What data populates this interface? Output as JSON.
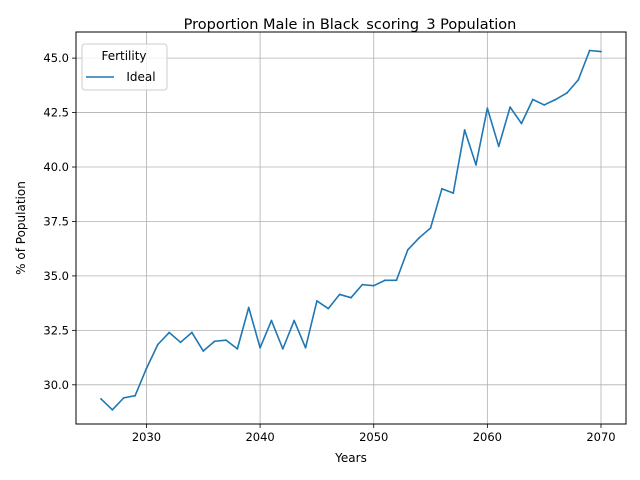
{
  "chart_data": {
    "type": "line",
    "title": "Proportion Male in Black_scoring_3 Population",
    "xlabel": "Years",
    "ylabel": "% of Population",
    "xlim": [
      2023.8,
      2072.2
    ],
    "ylim": [
      28.2,
      46.2
    ],
    "x_ticks": [
      2030,
      2040,
      2050,
      2060,
      2070
    ],
    "y_ticks": [
      30.0,
      32.5,
      35.0,
      37.5,
      40.0,
      42.5,
      45.0
    ],
    "x_tick_labels": [
      "2030",
      "2040",
      "2050",
      "2060",
      "2070"
    ],
    "y_tick_labels": [
      "30.0",
      "32.5",
      "35.0",
      "37.5",
      "40.0",
      "42.5",
      "45.0"
    ],
    "grid": true,
    "legend": {
      "title": "Fertility",
      "placement": "top-left"
    },
    "series": [
      {
        "name": "Ideal",
        "color": "#1f77b4",
        "x": [
          2026,
          2027,
          2028,
          2029,
          2030,
          2031,
          2032,
          2033,
          2034,
          2035,
          2036,
          2037,
          2038,
          2039,
          2040,
          2041,
          2042,
          2043,
          2044,
          2045,
          2046,
          2047,
          2048,
          2049,
          2050,
          2051,
          2052,
          2053,
          2054,
          2055,
          2056,
          2057,
          2058,
          2059,
          2060,
          2061,
          2062,
          2063,
          2064,
          2065,
          2066,
          2067,
          2068,
          2069,
          2070
        ],
        "y": [
          29.35,
          28.85,
          29.4,
          29.5,
          30.75,
          31.85,
          32.4,
          31.95,
          32.4,
          31.55,
          32.0,
          32.05,
          31.65,
          33.55,
          31.7,
          32.95,
          31.65,
          32.95,
          31.7,
          33.85,
          33.5,
          34.15,
          34.0,
          34.6,
          34.55,
          34.8,
          34.8,
          36.2,
          36.75,
          37.2,
          39.0,
          38.8,
          41.7,
          40.1,
          42.7,
          40.95,
          42.75,
          42.0,
          43.1,
          42.85,
          43.1,
          43.4,
          44.0,
          45.35,
          45.3
        ]
      }
    ]
  }
}
